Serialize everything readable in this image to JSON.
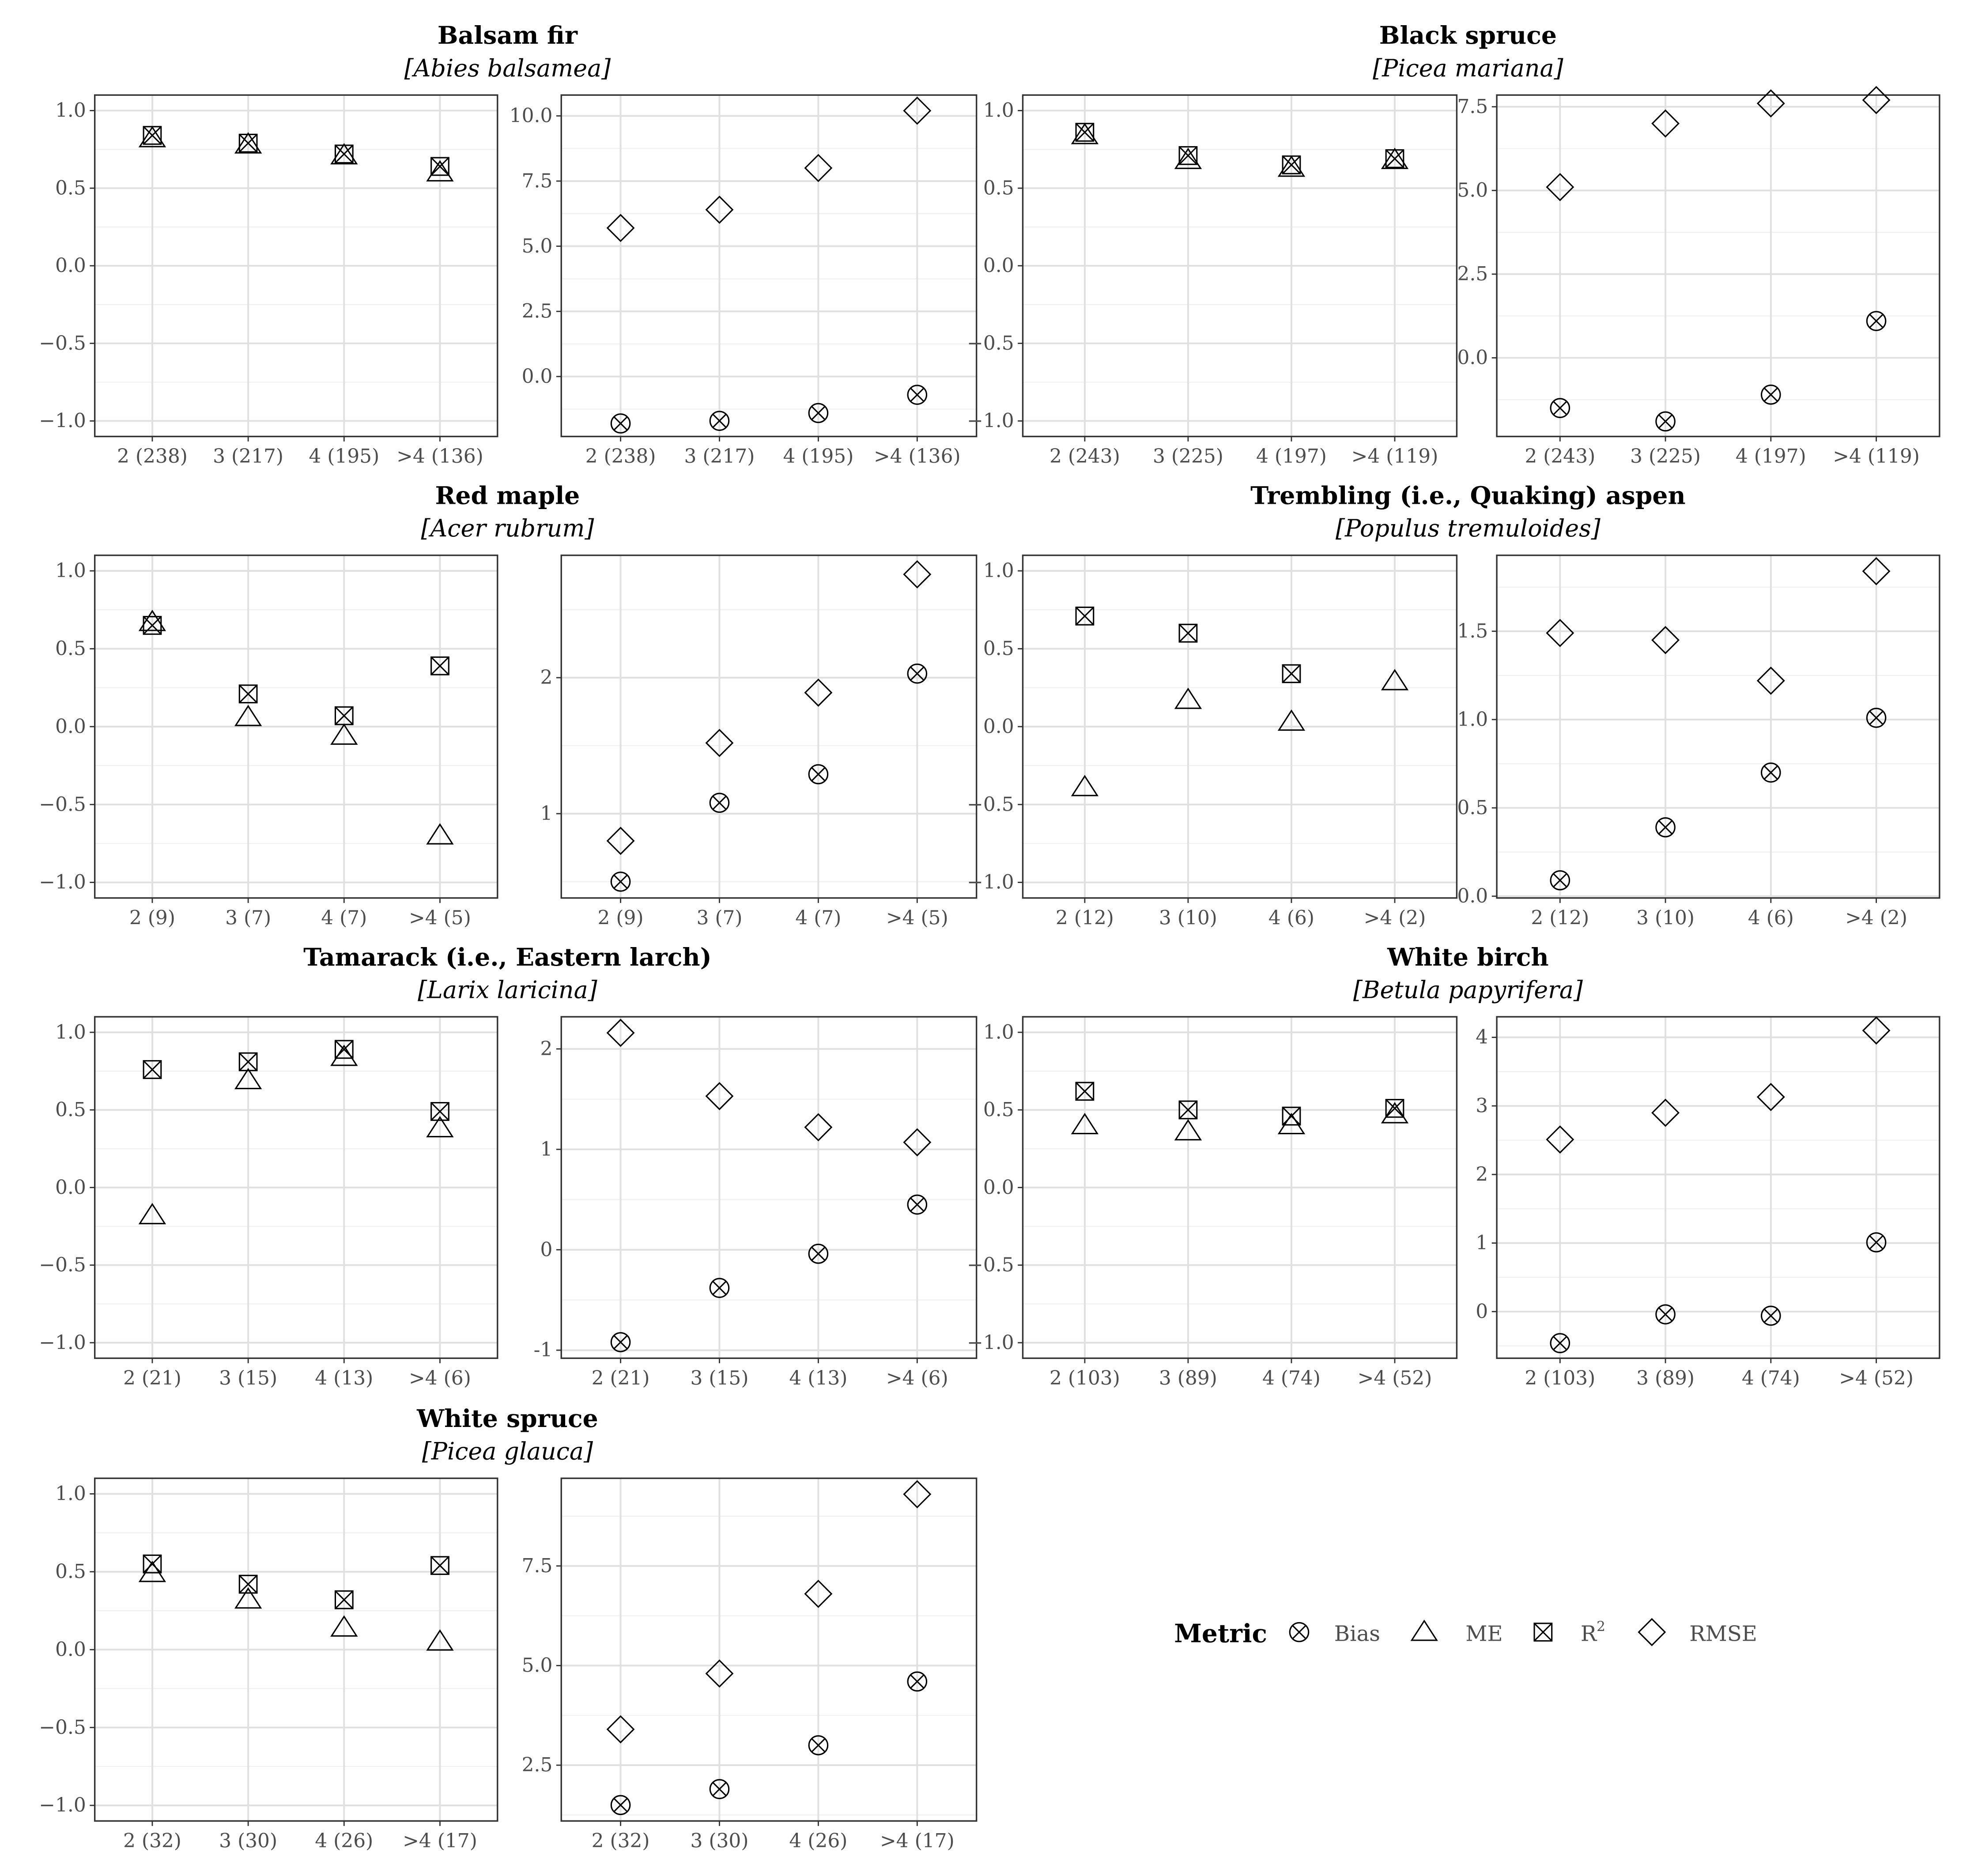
{
  "legend": {
    "title": "Metric",
    "items": [
      {
        "label": "Bias",
        "shape": "circle-x"
      },
      {
        "label": "ME",
        "shape": "triangle"
      },
      {
        "label": "R",
        "sup": "2",
        "shape": "square-x"
      },
      {
        "label": "RMSE",
        "shape": "diamond"
      }
    ]
  },
  "colors": {
    "mark": "#000000",
    "grid_major": "#e0e0e0",
    "grid_minor": "#f0f0f0",
    "frame": "#333333",
    "text": "#4d4d4d"
  },
  "chart_data": [
    {
      "type": "scatter",
      "title": "Balsam fir",
      "subtitle": "[Abies balsamea]",
      "categories": [
        "2 (238)",
        "3 (217)",
        "4 (195)",
        ">4 (136)"
      ],
      "left": {
        "ylim": [
          -1.1,
          1.1
        ],
        "yticks": [
          -1.0,
          -0.5,
          0.0,
          0.5,
          1.0
        ],
        "series": [
          {
            "name": "ME",
            "shape": "triangle",
            "values": [
              0.82,
              0.78,
              0.71,
              0.6
            ]
          },
          {
            "name": "R2",
            "shape": "square-x",
            "values": [
              0.84,
              0.79,
              0.72,
              0.64
            ]
          }
        ]
      },
      "right": {
        "ylim": [
          -2.3,
          10.8
        ],
        "yticks": [
          0.0,
          2.5,
          5.0,
          7.5,
          10.0
        ],
        "series": [
          {
            "name": "RMSE",
            "shape": "diamond",
            "values": [
              5.7,
              6.4,
              8.0,
              10.2
            ]
          },
          {
            "name": "Bias",
            "shape": "circle-x",
            "values": [
              -1.8,
              -1.7,
              -1.4,
              -0.7
            ]
          }
        ]
      }
    },
    {
      "type": "scatter",
      "title": "Black spruce",
      "subtitle": "[Picea mariana]",
      "categories": [
        "2 (243)",
        "3 (225)",
        "4 (197)",
        ">4 (119)"
      ],
      "left": {
        "ylim": [
          -1.1,
          1.1
        ],
        "yticks": [
          -1.0,
          -0.5,
          0.0,
          0.5,
          1.0
        ],
        "series": [
          {
            "name": "ME",
            "shape": "triangle",
            "values": [
              0.84,
              0.68,
              0.63,
              0.68
            ]
          },
          {
            "name": "R2",
            "shape": "square-x",
            "values": [
              0.86,
              0.71,
              0.65,
              0.69
            ]
          }
        ]
      },
      "right": {
        "ylim": [
          -2.35,
          7.85
        ],
        "yticks": [
          0.0,
          2.5,
          5.0,
          7.5
        ],
        "series": [
          {
            "name": "RMSE",
            "shape": "diamond",
            "values": [
              5.1,
              7.0,
              7.6,
              7.7
            ]
          },
          {
            "name": "Bias",
            "shape": "circle-x",
            "values": [
              -1.5,
              -1.9,
              -1.1,
              1.1
            ]
          }
        ]
      }
    },
    {
      "type": "scatter",
      "title": "Red maple",
      "subtitle": "[Acer rubrum]",
      "categories": [
        "2 (9)",
        "3 (7)",
        "4 (7)",
        ">4 (5)"
      ],
      "left": {
        "ylim": [
          -1.1,
          1.1
        ],
        "yticks": [
          -1.0,
          -0.5,
          0.0,
          0.5,
          1.0
        ],
        "series": [
          {
            "name": "ME",
            "shape": "triangle",
            "values": [
              0.67,
              0.06,
              -0.06,
              -0.7
            ]
          },
          {
            "name": "R2",
            "shape": "square-x",
            "values": [
              0.65,
              0.21,
              0.07,
              0.39
            ]
          }
        ]
      },
      "right": {
        "ylim": [
          0.38,
          2.9
        ],
        "yticks": [
          1,
          2
        ],
        "series": [
          {
            "name": "RMSE",
            "shape": "diamond",
            "values": [
              0.8,
              1.52,
              1.89,
              2.76
            ]
          },
          {
            "name": "Bias",
            "shape": "circle-x",
            "values": [
              0.5,
              1.08,
              1.29,
              2.03
            ]
          }
        ]
      }
    },
    {
      "type": "scatter",
      "title": "Trembling (i.e., Quaking) aspen",
      "subtitle": "[Populus tremuloides]",
      "categories": [
        "2 (12)",
        "3 (10)",
        "4 (6)",
        ">4 (2)"
      ],
      "left": {
        "ylim": [
          -1.1,
          1.1
        ],
        "yticks": [
          -1.0,
          -0.5,
          0.0,
          0.5,
          1.0
        ],
        "series": [
          {
            "name": "ME",
            "shape": "triangle",
            "values": [
              -0.39,
              0.17,
              0.03,
              0.29
            ]
          },
          {
            "name": "R2",
            "shape": "square-x",
            "values": [
              0.71,
              0.6,
              0.34,
              null
            ]
          }
        ]
      },
      "right": {
        "ylim": [
          -0.01,
          1.93
        ],
        "yticks": [
          0.0,
          0.5,
          1.0,
          1.5
        ],
        "series": [
          {
            "name": "RMSE",
            "shape": "diamond",
            "values": [
              1.49,
              1.45,
              1.22,
              1.84
            ]
          },
          {
            "name": "Bias",
            "shape": "circle-x",
            "values": [
              0.09,
              0.39,
              0.7,
              1.01
            ]
          }
        ]
      }
    },
    {
      "type": "scatter",
      "title": "Tamarack (i.e., Eastern larch)",
      "subtitle": "[Larix laricina]",
      "categories": [
        "2 (21)",
        "3 (15)",
        "4 (13)",
        ">4 (6)"
      ],
      "left": {
        "ylim": [
          -1.1,
          1.1
        ],
        "yticks": [
          -1.0,
          -0.5,
          0.0,
          0.5,
          1.0
        ],
        "series": [
          {
            "name": "ME",
            "shape": "triangle",
            "values": [
              -0.18,
              0.69,
              0.84,
              0.38
            ]
          },
          {
            "name": "R2",
            "shape": "square-x",
            "values": [
              0.76,
              0.81,
              0.89,
              0.49
            ]
          }
        ]
      },
      "right": {
        "ylim": [
          -1.08,
          2.32
        ],
        "yticks": [
          -1,
          0,
          1,
          2
        ],
        "series": [
          {
            "name": "RMSE",
            "shape": "diamond",
            "values": [
              2.16,
              1.53,
              1.22,
              1.07
            ]
          },
          {
            "name": "Bias",
            "shape": "circle-x",
            "values": [
              -0.92,
              -0.38,
              -0.04,
              0.45
            ]
          }
        ]
      }
    },
    {
      "type": "scatter",
      "title": "White birch",
      "subtitle": "[Betula papyrifera]",
      "categories": [
        "2 (103)",
        "3 (89)",
        "4 (74)",
        ">4 (52)"
      ],
      "left": {
        "ylim": [
          -1.1,
          1.1
        ],
        "yticks": [
          -1.0,
          -0.5,
          0.0,
          0.5,
          1.0
        ],
        "series": [
          {
            "name": "ME",
            "shape": "triangle",
            "values": [
              0.4,
              0.36,
              0.4,
              0.47
            ]
          },
          {
            "name": "R2",
            "shape": "square-x",
            "values": [
              0.62,
              0.5,
              0.46,
              0.51
            ]
          }
        ]
      },
      "right": {
        "ylim": [
          -0.68,
          4.3
        ],
        "yticks": [
          0,
          1,
          2,
          3,
          4
        ],
        "series": [
          {
            "name": "RMSE",
            "shape": "diamond",
            "values": [
              2.51,
              2.9,
              3.13,
              4.1
            ]
          },
          {
            "name": "Bias",
            "shape": "circle-x",
            "values": [
              -0.46,
              -0.04,
              -0.06,
              1.01
            ]
          }
        ]
      }
    },
    {
      "type": "scatter",
      "title": "White spruce",
      "subtitle": "[Picea glauca]",
      "categories": [
        "2 (32)",
        "3 (30)",
        "4 (26)",
        ">4 (17)"
      ],
      "left": {
        "ylim": [
          -1.1,
          1.1
        ],
        "yticks": [
          -1.0,
          -0.5,
          0.0,
          0.5,
          1.0
        ],
        "series": [
          {
            "name": "ME",
            "shape": "triangle",
            "values": [
              0.49,
              0.32,
              0.14,
              0.05
            ]
          },
          {
            "name": "R2",
            "shape": "square-x",
            "values": [
              0.55,
              0.42,
              0.32,
              0.54
            ]
          }
        ]
      },
      "right": {
        "ylim": [
          1.1,
          9.7
        ],
        "yticks": [
          2.5,
          5.0,
          7.5
        ],
        "series": [
          {
            "name": "RMSE",
            "shape": "diamond",
            "values": [
              3.4,
              4.8,
              6.8,
              9.3
            ]
          },
          {
            "name": "Bias",
            "shape": "circle-x",
            "values": [
              1.5,
              1.9,
              3.0,
              4.6
            ]
          }
        ]
      }
    }
  ]
}
